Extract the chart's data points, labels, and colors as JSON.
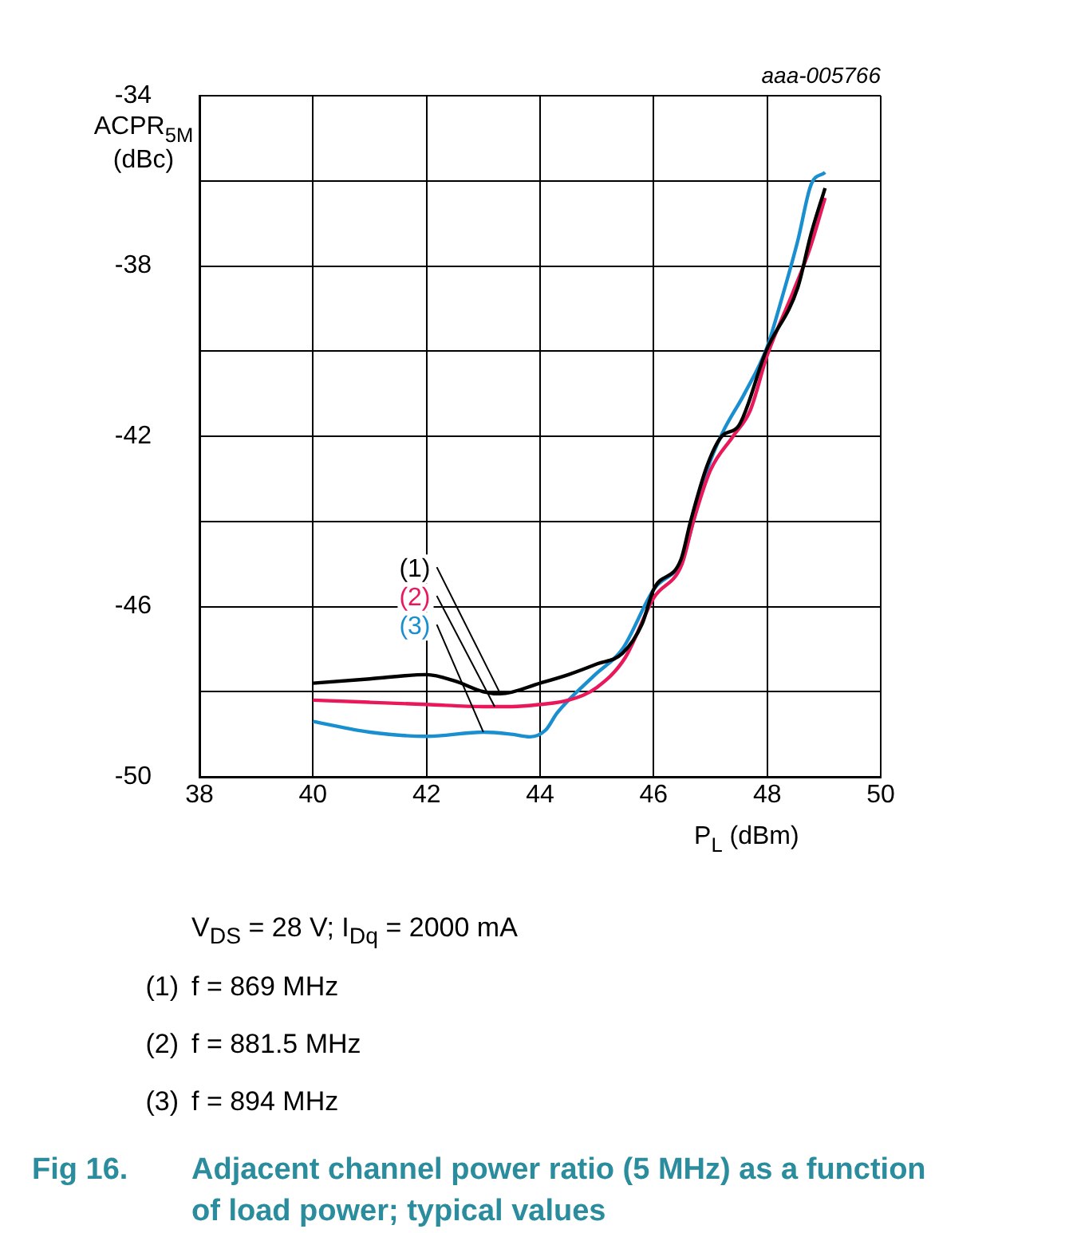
{
  "chart_data": {
    "type": "line",
    "title": "Fig 16.\tAdjacent channel power ratio (5 MHz) as a function of load power; typical values",
    "xlabel": "P$_{L}$ (dBm)",
    "ylabel": "ACPR$_{5M}$\n(dBc)",
    "xlim": [
      38,
      50
    ],
    "xticks": [
      38,
      40,
      42,
      44,
      46,
      48,
      50
    ],
    "ylim": [
      -50,
      -34
    ],
    "yticks": [
      -50,
      {
        "value": -48,
        "label": null
      },
      -46,
      {
        "value": -44,
        "label": null
      },
      -42,
      {
        "value": -40,
        "label": null
      },
      -38,
      {
        "value": -36,
        "label": null
      },
      -34
    ],
    "grid": true,
    "legend": false,
    "marker": "none",
    "line_style": "solid",
    "series": [
      {
        "color": "#000000",
        "x": [
          40,
          41,
          42,
          42.5,
          43,
          43.3,
          44,
          44.5,
          45,
          45.45,
          45.8,
          46,
          46.48,
          46.65,
          46.94,
          47.2,
          47.5,
          47.98,
          48.54,
          48.77,
          49.02
        ],
        "values": [
          -47.8,
          -47.7,
          -47.6,
          -47.75,
          -48.0,
          -48.05,
          -47.8,
          -47.6,
          -47.35,
          -47.1,
          -46.4,
          -45.6,
          -44.9,
          -44.0,
          -42.7,
          -42.0,
          -41.75,
          -40.0,
          -38.5,
          -37.26,
          -36.17
        ]
      },
      {
        "color": "#e8185a",
        "x": [
          40,
          41,
          42,
          43,
          43.5,
          44,
          44.5,
          45,
          45.5,
          46,
          46.5,
          46.7,
          47,
          47.4,
          47.7,
          48,
          48.46,
          48.75,
          49.02
        ],
        "values": [
          -48.2,
          -48.25,
          -48.3,
          -48.35,
          -48.35,
          -48.3,
          -48.2,
          -47.9,
          -47.2,
          -45.8,
          -45.0,
          -44.0,
          -42.8,
          -42.0,
          -41.4,
          -40.1,
          -38.6,
          -37.6,
          -36.4
        ]
      },
      {
        "color": "#1a8fd0",
        "x": [
          40,
          41,
          42,
          43,
          43.5,
          43.82,
          44.1,
          44.3,
          44.97,
          45.45,
          46,
          46.5,
          46.7,
          46.94,
          47.22,
          47.6,
          48.0,
          48.26,
          48.54,
          48.77,
          49.02
        ],
        "values": [
          -48.7,
          -48.95,
          -49.05,
          -48.95,
          -49.0,
          -49.06,
          -48.9,
          -48.5,
          -47.6,
          -47.0,
          -45.6,
          -44.9,
          -44.0,
          -42.8,
          -41.9,
          -41.0,
          -39.9,
          -38.75,
          -37.4,
          -36.1,
          -35.8
        ]
      }
    ],
    "annotations": [
      "aaa-005766",
      {
        "text": "(1)",
        "x": 43.3,
        "y": -48.05
      },
      {
        "text": "(2)",
        "x": 43.2,
        "y": -48.35
      },
      {
        "text": "(3)",
        "x": 43.0,
        "y": -48.95
      },
      "V$_{DS}$ = 28 V; I$_{Dq}$ = 2000 mA",
      "(1)\tf = 869 MHz",
      "(2)\tf = 881.5 MHz",
      "(3)\tf = 894 MHz"
    ]
  }
}
